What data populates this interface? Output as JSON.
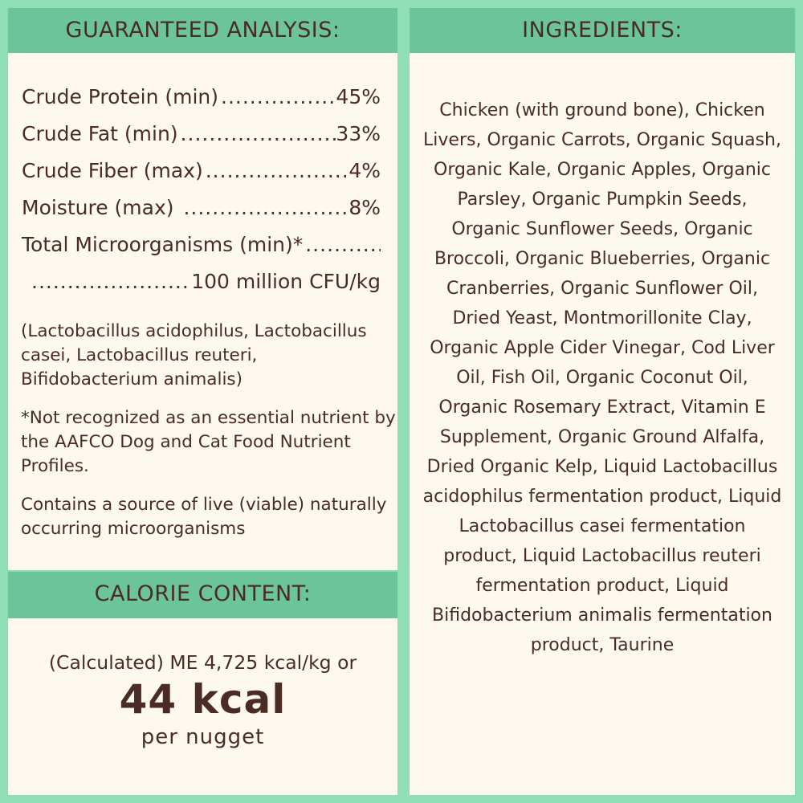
{
  "colors": {
    "background": "#8fdeb6",
    "header": "#6cc59a",
    "panel": "#fdf9ef",
    "text": "#4a2c24"
  },
  "analysis": {
    "title": "GUARANTEED ANALYSIS:",
    "rows": [
      {
        "label": "Crude Protein (min)",
        "value": "45%"
      },
      {
        "label": "Crude Fat (min)",
        "value": "33%"
      },
      {
        "label": "Crude Fiber (max)",
        "value": "4%"
      },
      {
        "label": "Moisture (max)",
        "value": "8%"
      },
      {
        "label": "Total Microorganisms (min)*",
        "value": ""
      },
      {
        "label": "",
        "value": "100 million CFU/kg"
      }
    ],
    "strains": "(Lactobacillus acidophilus, Lactobacillus casei, Lactobacillus reuteri, Bifidobacterium animalis)",
    "footnote": "*Not recognized as an essential nutrient by the AAFCO Dog and Cat Food Nutrient Profiles.",
    "live_note": "Contains a source of live (viable) naturally occurring microorganisms"
  },
  "calorie": {
    "title": "CALORIE CONTENT:",
    "line": "(Calculated) ME 4,725 kcal/kg or",
    "big": "44 kcal",
    "sub": "per nugget"
  },
  "ingredients": {
    "title": "INGREDIENTS:",
    "text": "Chicken (with ground bone), Chicken Livers, Organic Carrots, Organic Squash, Organic Kale, Organic Apples, Organic Parsley, Organic Pumpkin Seeds, Organic Sunflower Seeds, Organic Broccoli, Organic Blueberries, Organic Cranberries, Organic Sunflower Oil, Dried Yeast, Montmorillonite Clay, Organic Apple Cider Vinegar, Cod Liver Oil, Fish Oil, Organic Coconut Oil, Organic Rosemary Extract, Vitamin E Supplement, Organic Ground Alfalfa, Dried Organic Kelp, Liquid Lactobacillus acidophilus fermentation product, Liquid Lactobacillus casei fermentation product, Liquid Lactobacillus reuteri fermentation product, Liquid Bifidobacterium animalis fermentation product, Taurine"
  }
}
